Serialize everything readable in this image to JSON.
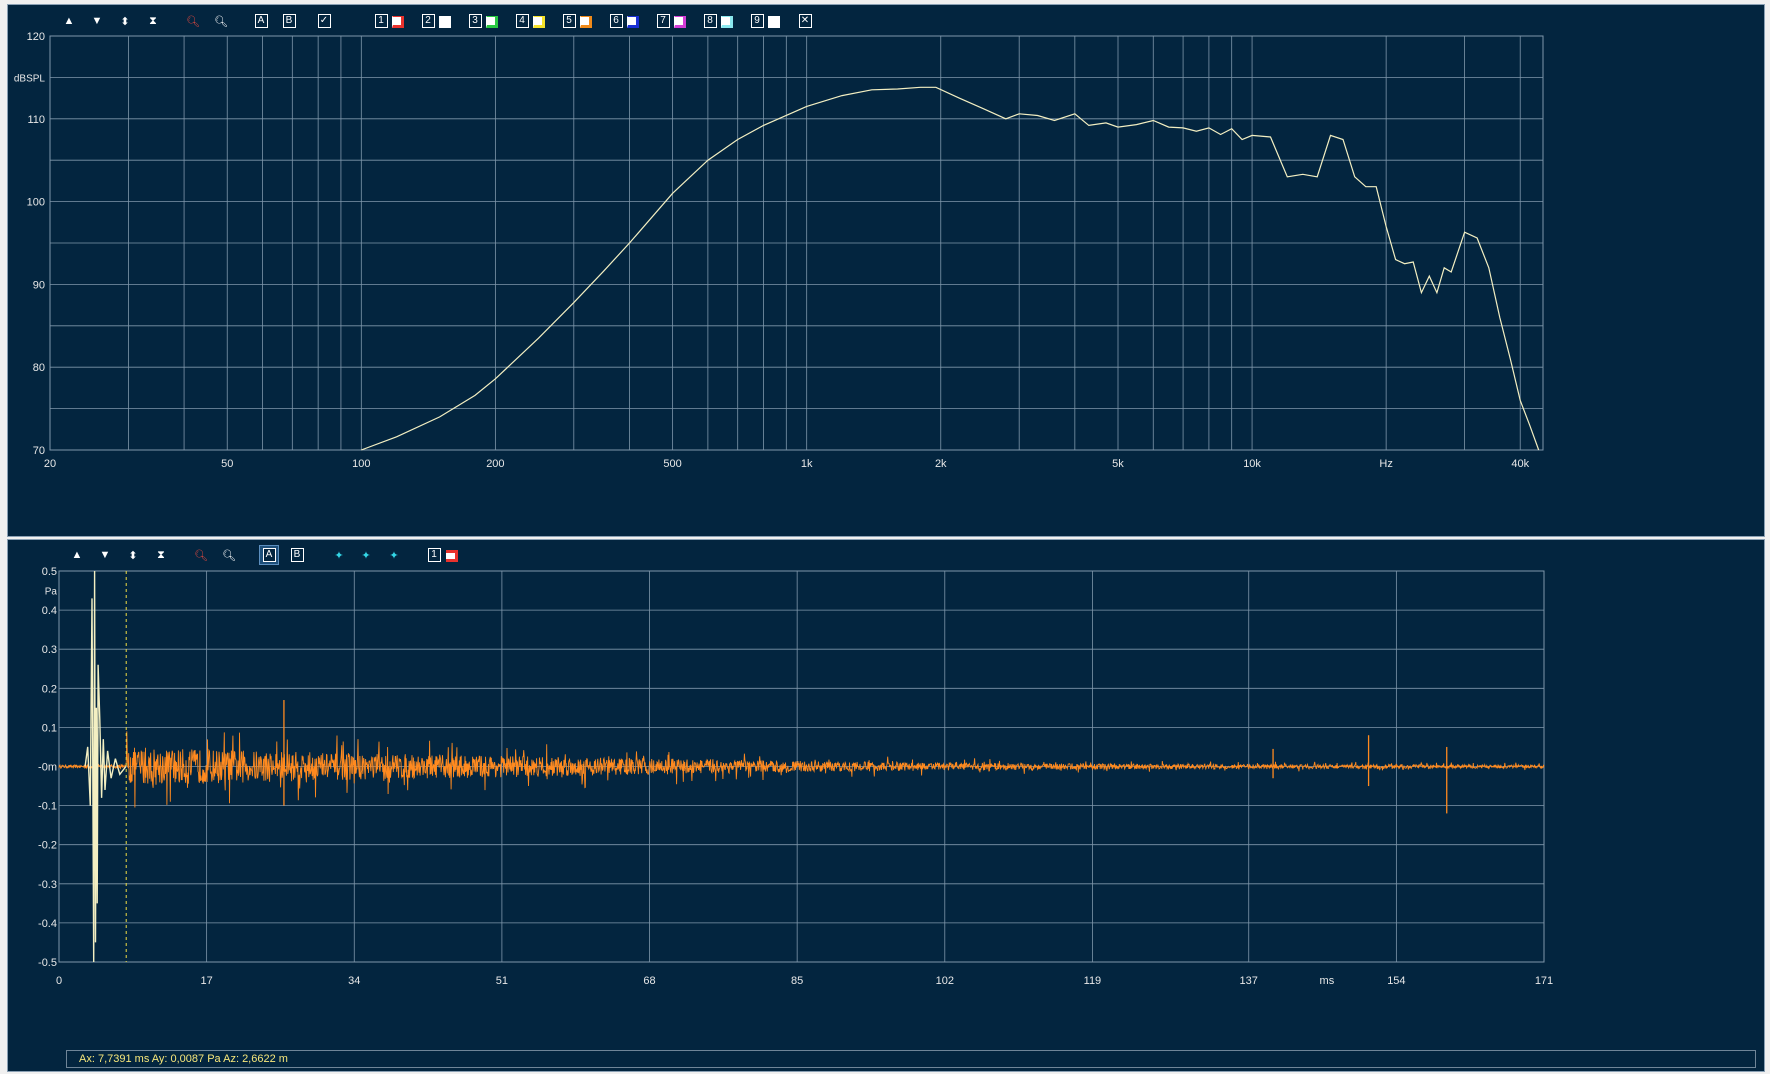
{
  "top_toolbar": {
    "buttons": [
      "up-arrow-icon",
      "down-arrow-icon",
      "expand-vertical-icon",
      "compress-vertical-icon",
      "zoom-in-icon",
      "zoom-out-icon"
    ],
    "cursor_a": "A",
    "cursor_b": "B",
    "channels": [
      {
        "num": "1",
        "color": "#e8322d"
      },
      {
        "num": "2",
        "color": "#ffffff"
      },
      {
        "num": "3",
        "color": "#28c841"
      },
      {
        "num": "4",
        "color": "#f5e22a"
      },
      {
        "num": "5",
        "color": "#f08a1a"
      },
      {
        "num": "6",
        "color": "#1a2fd4"
      },
      {
        "num": "7",
        "color": "#d33cd6"
      },
      {
        "num": "8",
        "color": "#8ae8ee"
      },
      {
        "num": "9",
        "color": "#ffffff"
      }
    ]
  },
  "bottom_toolbar": {
    "cursor_a": "A",
    "cursor_b": "B",
    "channel_num": "1",
    "channel_color": "#e8322d"
  },
  "chart_data": [
    {
      "type": "line",
      "ylabel": "dBSPL",
      "xunit": "Hz",
      "xscale": "log",
      "xlim": [
        20,
        45000
      ],
      "ylim": [
        70,
        120
      ],
      "yticks": [
        "120",
        "110",
        "100",
        "90",
        "80",
        "70"
      ],
      "xticks": [
        "20",
        "50",
        "100",
        "200",
        "500",
        "1k",
        "2k",
        "5k",
        "10k",
        "Hz",
        "40k"
      ],
      "line_color": "#f3efc2",
      "series": [
        {
          "x": [
            100,
            120,
            150,
            180,
            200,
            250,
            300,
            350,
            400,
            500,
            600,
            700,
            800,
            1000,
            1200,
            1400,
            1600,
            1800,
            1950,
            2200,
            2500,
            2800,
            3000,
            3300,
            3600,
            4000,
            4300,
            4700,
            5000,
            5500,
            6000,
            6500,
            7000,
            7500,
            8000,
            8500,
            9000,
            9500,
            10000,
            11000,
            12000,
            13000,
            14000,
            15000,
            16000,
            17000,
            18000,
            19000,
            20000,
            21000,
            22000,
            23000,
            24000,
            25000,
            26000,
            27000,
            28000,
            30000,
            32000,
            34000,
            36000,
            38000,
            40000,
            42000,
            44000
          ],
          "y": [
            70,
            71.6,
            74,
            76.6,
            78.6,
            83.5,
            87.8,
            91.6,
            95,
            101,
            105,
            107.5,
            109.2,
            111.5,
            112.8,
            113.5,
            113.6,
            113.8,
            113.8,
            112.5,
            111.2,
            110,
            110.6,
            110.4,
            109.8,
            110.6,
            109.2,
            109.5,
            109,
            109.3,
            109.8,
            109,
            108.9,
            108.5,
            108.9,
            108.1,
            108.8,
            107.5,
            108,
            107.8,
            103,
            103.3,
            103,
            108,
            107.5,
            103,
            101.8,
            101.8,
            97,
            93,
            92.5,
            92.7,
            89,
            91,
            89,
            92,
            91.5,
            96.3,
            95.6,
            92,
            86,
            81,
            76,
            73,
            70
          ]
        }
      ]
    },
    {
      "type": "line",
      "ylabel": "Pa",
      "xunit": "ms",
      "xlim": [
        0,
        171
      ],
      "ylim": [
        -0.5,
        0.5
      ],
      "yticks": [
        "0.5",
        "0.4",
        "0.3",
        "0.2",
        "0.1",
        "-0m",
        "-0.1",
        "-0.2",
        "-0.3",
        "-0.4",
        "-0.5"
      ],
      "xticks": [
        "0",
        "17",
        "34",
        "51",
        "68",
        "85",
        "102",
        "119",
        "137",
        "ms",
        "154",
        "171"
      ],
      "impulse_color": "#f3efc2",
      "tail_color": "#ff8a1f",
      "cursor_ms": 7.7391,
      "impulse": {
        "x": [
          3.0,
          3.3,
          3.6,
          3.8,
          4.0,
          4.1,
          4.2,
          4.3,
          4.4,
          4.5,
          4.7,
          4.9,
          5.1,
          5.3,
          5.6,
          6.0,
          6.5,
          7.0,
          7.7
        ],
        "y": [
          0,
          0.05,
          -0.1,
          0.43,
          -0.5,
          0.5,
          -0.45,
          0.15,
          -0.35,
          0.26,
          0.12,
          -0.08,
          0.07,
          -0.06,
          0.04,
          -0.03,
          0.02,
          -0.02,
          0
        ]
      },
      "spikes": [
        {
          "x": 25.9,
          "y": 0.17
        },
        {
          "x": 25.9,
          "y": -0.1
        },
        {
          "x": 139.8,
          "y": 0.045
        },
        {
          "x": 139.8,
          "y": -0.03
        },
        {
          "x": 150.8,
          "y": 0.08
        },
        {
          "x": 150.8,
          "y": -0.05
        },
        {
          "x": 159.8,
          "y": 0.05
        },
        {
          "x": 159.8,
          "y": -0.12
        }
      ],
      "envelope": {
        "x": [
          7.7,
          20,
          40,
          60,
          85,
          100,
          120,
          140,
          171
        ],
        "y": [
          0.07,
          0.06,
          0.045,
          0.035,
          0.02,
          0.015,
          0.01,
          0.008,
          0.006
        ]
      }
    }
  ],
  "status": {
    "text": "Ax: 7,7391 ms   Ay: 0,0087 Pa   Az: 2,6622 m"
  }
}
